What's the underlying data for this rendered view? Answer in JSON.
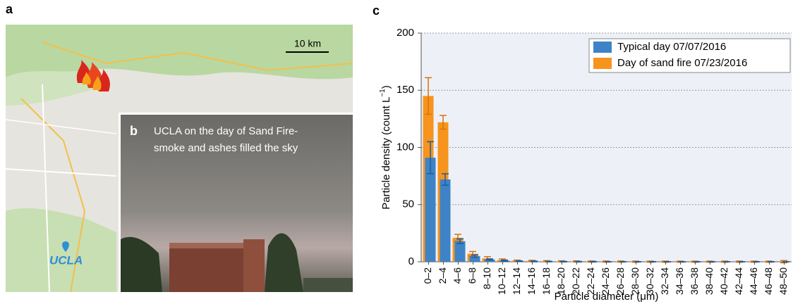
{
  "panels": {
    "a": "a",
    "b": "b",
    "c": "c"
  },
  "map": {
    "scale": "10 km",
    "place": "UCLA"
  },
  "photo": {
    "caption_1": "UCLA on the day of Sand Fire-",
    "caption_2": "smoke and ashes filled the sky"
  },
  "chart_data": {
    "type": "bar",
    "y_label": [
      "Particle density (count L",
      "−1",
      ")"
    ],
    "x_label": "Particle diameter (μm)",
    "categories": [
      "0–2",
      "2–4",
      "4–6",
      "6–8",
      "8–10",
      "10–12",
      "12–14",
      "14–16",
      "16–18",
      "18–20",
      "20–22",
      "22–24",
      "24–26",
      "26–28",
      "28–30",
      "30–32",
      "32–34",
      "34–36",
      "36–38",
      "38–40",
      "40–42",
      "42–44",
      "44–46",
      "46–48",
      "48–50"
    ],
    "series": [
      {
        "name": "Day of sand fire 07/23/2016",
        "color": "#f7941d",
        "error_color": "#d9730f",
        "values": [
          145,
          122,
          21,
          7,
          3,
          1.5,
          1,
          0.8,
          0.5,
          0.4,
          0.3,
          0.2,
          0.2,
          0.2,
          0.1,
          0.1,
          0.1,
          0.1,
          0.1,
          0.1,
          0.1,
          0.1,
          0.1,
          0.1,
          0.1
        ],
        "errors": [
          16,
          6,
          3,
          2,
          1.5,
          1,
          0.5,
          0.5,
          0.5,
          0.5,
          0.5,
          0.5,
          0.5,
          0.5,
          0.5,
          0.5,
          0.5,
          0.5,
          0.5,
          0.5,
          0.5,
          0.5,
          0.5,
          0.5,
          1
        ]
      },
      {
        "name": "Typical day 07/07/2016",
        "color": "#3f83c7",
        "error_color": "#1c5c9c",
        "values": [
          91,
          72,
          18,
          5,
          2,
          1,
          0.5,
          0.3,
          0.2,
          0.1,
          0.1,
          0.1,
          0,
          0,
          0,
          0,
          0,
          0,
          0,
          0,
          0,
          0,
          0,
          0,
          0
        ],
        "errors": [
          14,
          5,
          2,
          1,
          0.5,
          0.5,
          0.3,
          0.3,
          0.2,
          0.2,
          0.2,
          0.2,
          0.1,
          0.1,
          0.1,
          0.1,
          0.1,
          0.1,
          0.1,
          0.1,
          0.1,
          0.1,
          0.1,
          0.1,
          0.1
        ]
      }
    ],
    "legend_order": [
      1,
      0
    ],
    "ylim": [
      0,
      200
    ],
    "yticks": [
      0,
      50,
      100,
      150,
      200
    ],
    "grid": true,
    "legend": "upper right"
  }
}
